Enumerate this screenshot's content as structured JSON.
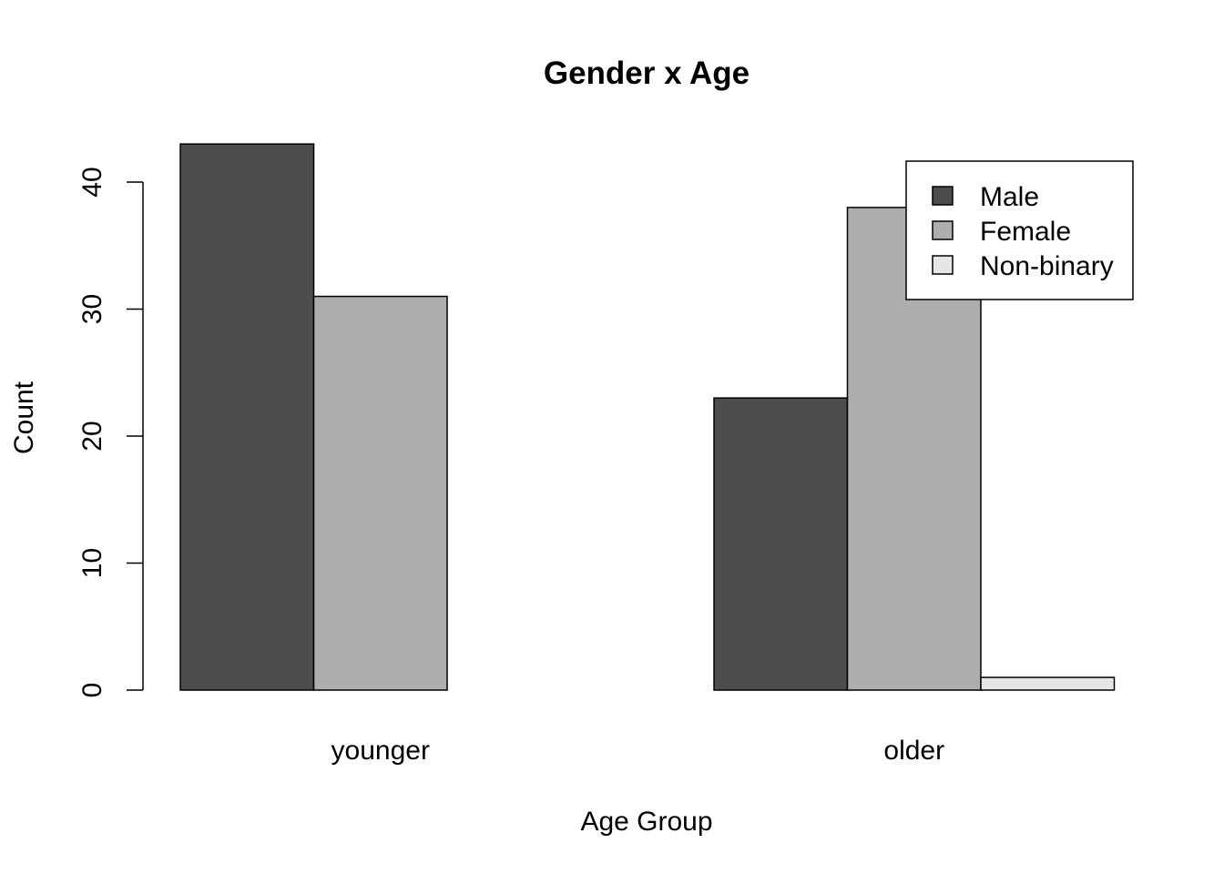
{
  "chart_data": {
    "type": "bar",
    "mode": "grouped",
    "title": "Gender x Age",
    "xlabel": "Age Group",
    "ylabel": "Count",
    "categories": [
      "younger",
      "older"
    ],
    "series": [
      {
        "name": "Male",
        "values": [
          43,
          23
        ],
        "color": "#4d4d4d"
      },
      {
        "name": "Female",
        "values": [
          31,
          38
        ],
        "color": "#aeaeae"
      },
      {
        "name": "Non-binary",
        "values": [
          0,
          1
        ],
        "color": "#e6e6e6"
      }
    ],
    "ylim": [
      0,
      40
    ],
    "yticks": [
      0,
      10,
      20,
      30,
      40
    ],
    "grid": false,
    "legend": "top-right"
  }
}
